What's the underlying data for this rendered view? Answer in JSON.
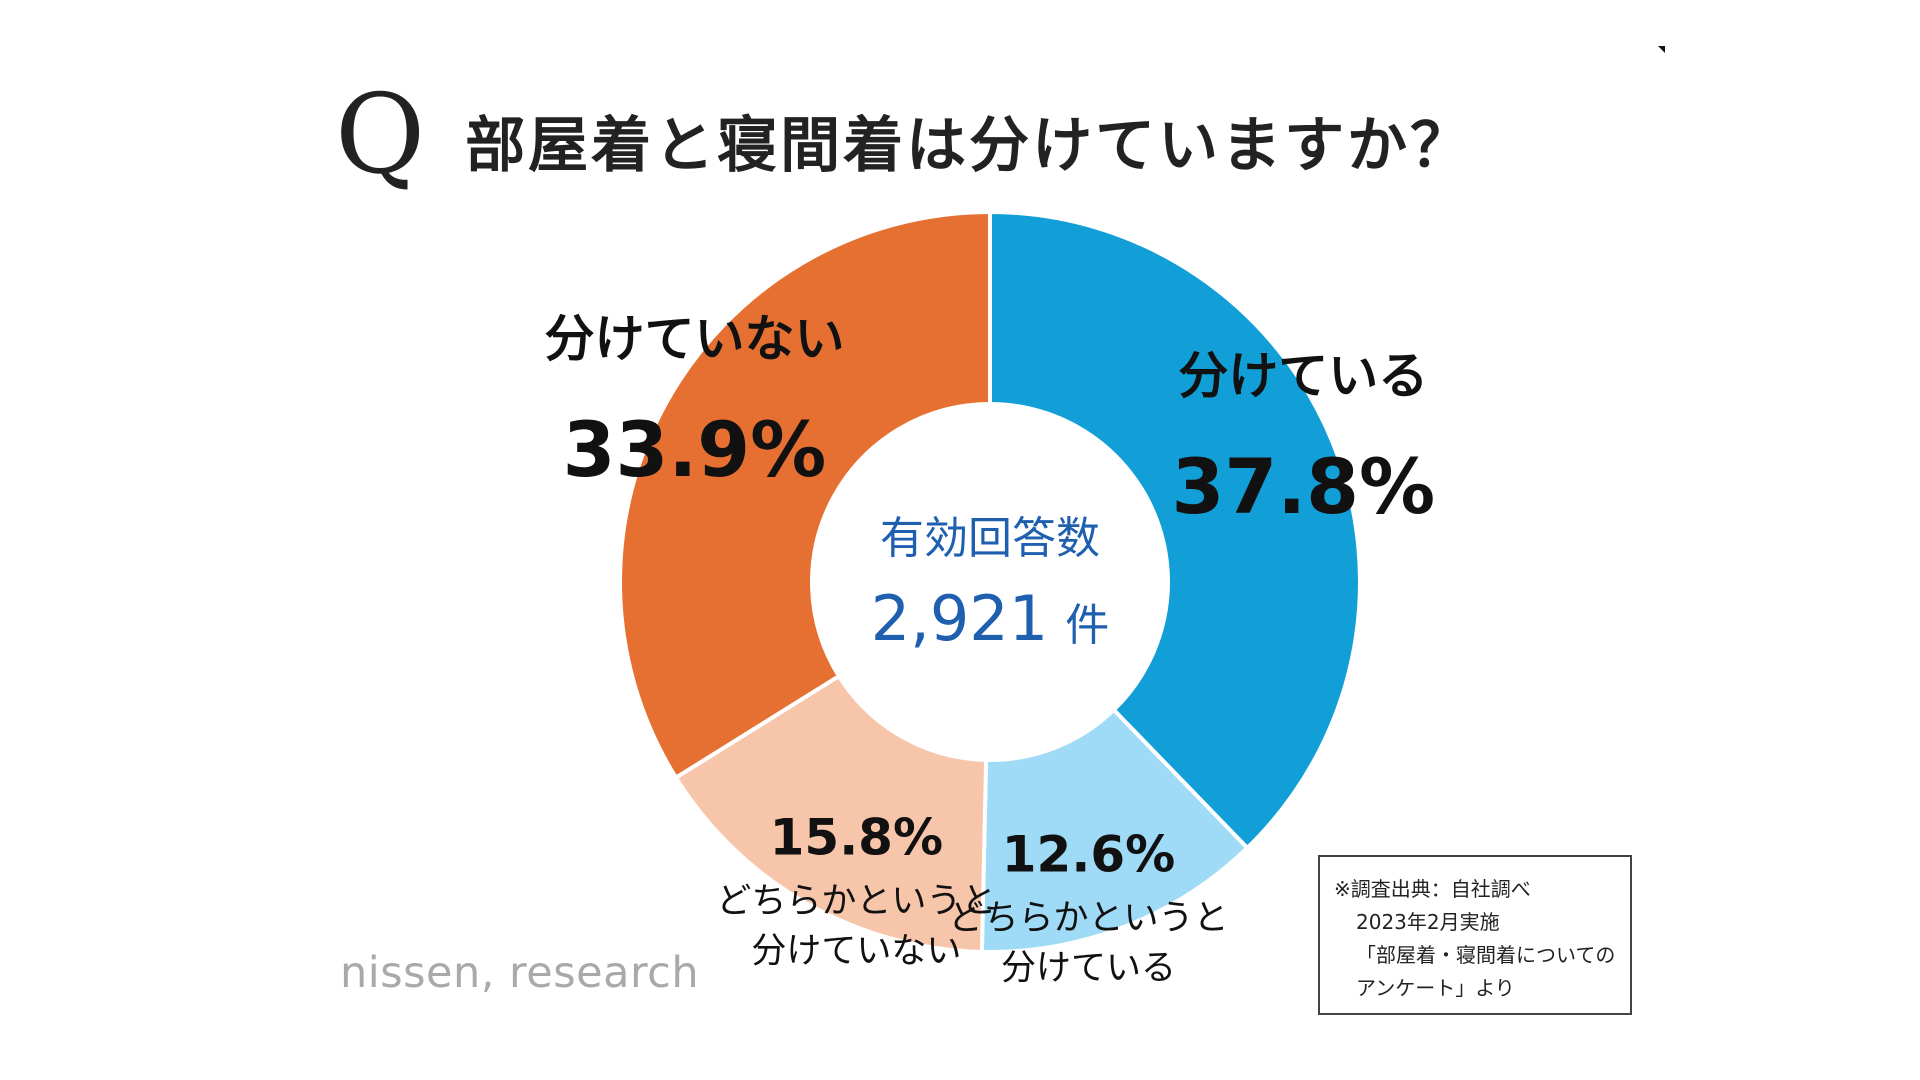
{
  "title": {
    "q_mark": "Q",
    "text": "部屋着と寝間着は分けていますか？"
  },
  "chart_data": {
    "type": "pie",
    "donut": true,
    "center": {
      "label": "有効回答数",
      "value": "2,921",
      "unit": "件"
    },
    "slices": [
      {
        "label_lines": [
          "分けている"
        ],
        "value": 37.8,
        "value_text": "37.8%",
        "color": "#129ed6",
        "style": "large"
      },
      {
        "label_lines": [
          "どちらかというと",
          "分けている"
        ],
        "value": 12.6,
        "value_text": "12.6%",
        "color": "#9fdbf6",
        "style": "small"
      },
      {
        "label_lines": [
          "どちらかというと",
          "分けていない"
        ],
        "value": 15.8,
        "value_text": "15.8%",
        "color": "#f6c5aa",
        "style": "small"
      },
      {
        "label_lines": [
          "分けていない"
        ],
        "value": 33.9,
        "value_text": "33.9%",
        "color": "#e67032",
        "style": "large"
      }
    ]
  },
  "source_note": {
    "lines": [
      "※調査出典：自社調べ",
      "2023年2月実施",
      "「部屋着・寝間着についての",
      "アンケート」より"
    ]
  },
  "logo": {
    "text": "nissen, research"
  }
}
